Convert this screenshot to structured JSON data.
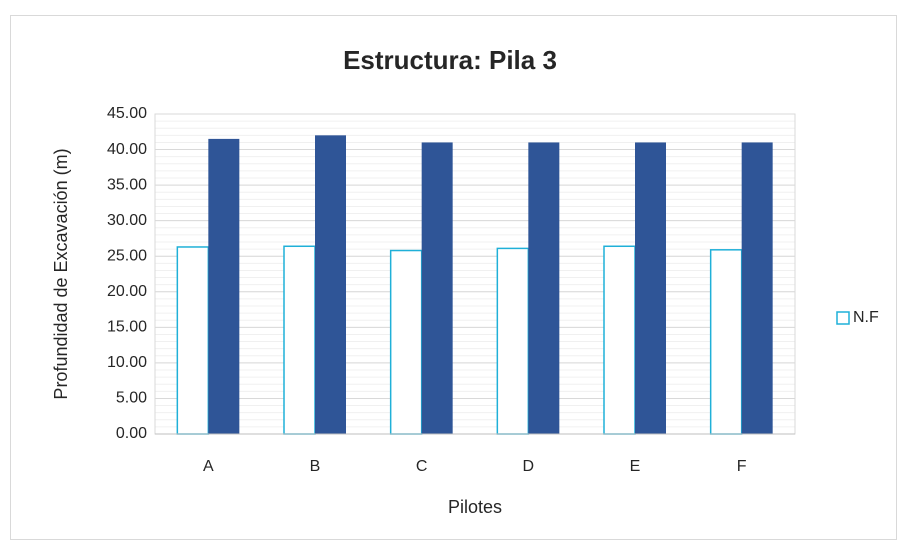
{
  "chart_data": {
    "type": "bar",
    "title": "Estructura: Pila 3",
    "x_label": "Pilotes",
    "y_label": "Profundidad de Excavación (m)",
    "categories": [
      "A",
      "B",
      "C",
      "D",
      "E",
      "F"
    ],
    "series": [
      {
        "name": "N.F",
        "color": "#ffffff",
        "stroke": "#1fb0d8",
        "values": [
          26.3,
          26.4,
          25.8,
          26.1,
          26.4,
          25.9
        ]
      },
      {
        "color": "#2f5597",
        "values": [
          41.5,
          42.0,
          41.0,
          41.0,
          41.0,
          41.0
        ]
      }
    ],
    "ylim": [
      0,
      45
    ],
    "yticks": [
      {
        "value": 0,
        "label": "0.00"
      },
      {
        "value": 5,
        "label": "5.00"
      },
      {
        "value": 10,
        "label": "10.00"
      },
      {
        "value": 15,
        "label": "15.00"
      },
      {
        "value": 20,
        "label": "20.00"
      },
      {
        "value": 25,
        "label": "25.00"
      },
      {
        "value": 30,
        "label": "30.00"
      },
      {
        "value": 35,
        "label": "35.00"
      },
      {
        "value": 40,
        "label": "40.00"
      },
      {
        "value": 45,
        "label": "45.00"
      }
    ],
    "grid": true,
    "legend": "right"
  }
}
